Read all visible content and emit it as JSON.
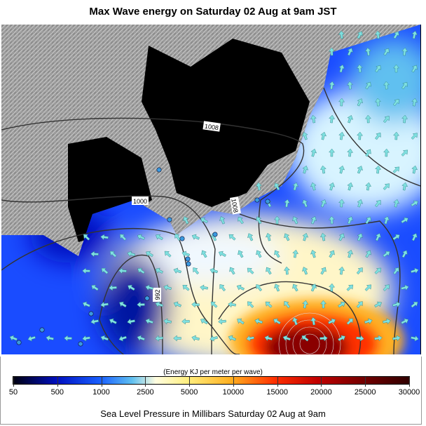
{
  "title": "Max Wave energy on Saturday 02 Aug at 9am JST",
  "map": {
    "contour_labels": [
      "1008",
      "1000",
      "1008",
      "992"
    ],
    "colors": {
      "land": "#9c9c9c",
      "masked_sea": "#000000",
      "arrow": "#7fe0e0",
      "city_dot": "#3a9ae0",
      "contour": "#333333"
    }
  },
  "legend": {
    "title": "(Energy KJ per meter per wave)",
    "ticks": [
      "50",
      "500",
      "1000",
      "2500",
      "5000",
      "10000",
      "15000",
      "20000",
      "25000",
      "30000"
    ],
    "colors": [
      "#000010",
      "#0010c0",
      "#1a60ff",
      "#60c0f0",
      "#fffde0",
      "#ffef80",
      "#ffb020",
      "#ff3000",
      "#c00000",
      "#700000",
      "#300000"
    ]
  },
  "caption": "Sea Level Pressure in Millibars Saturday 02 Aug at 9am"
}
